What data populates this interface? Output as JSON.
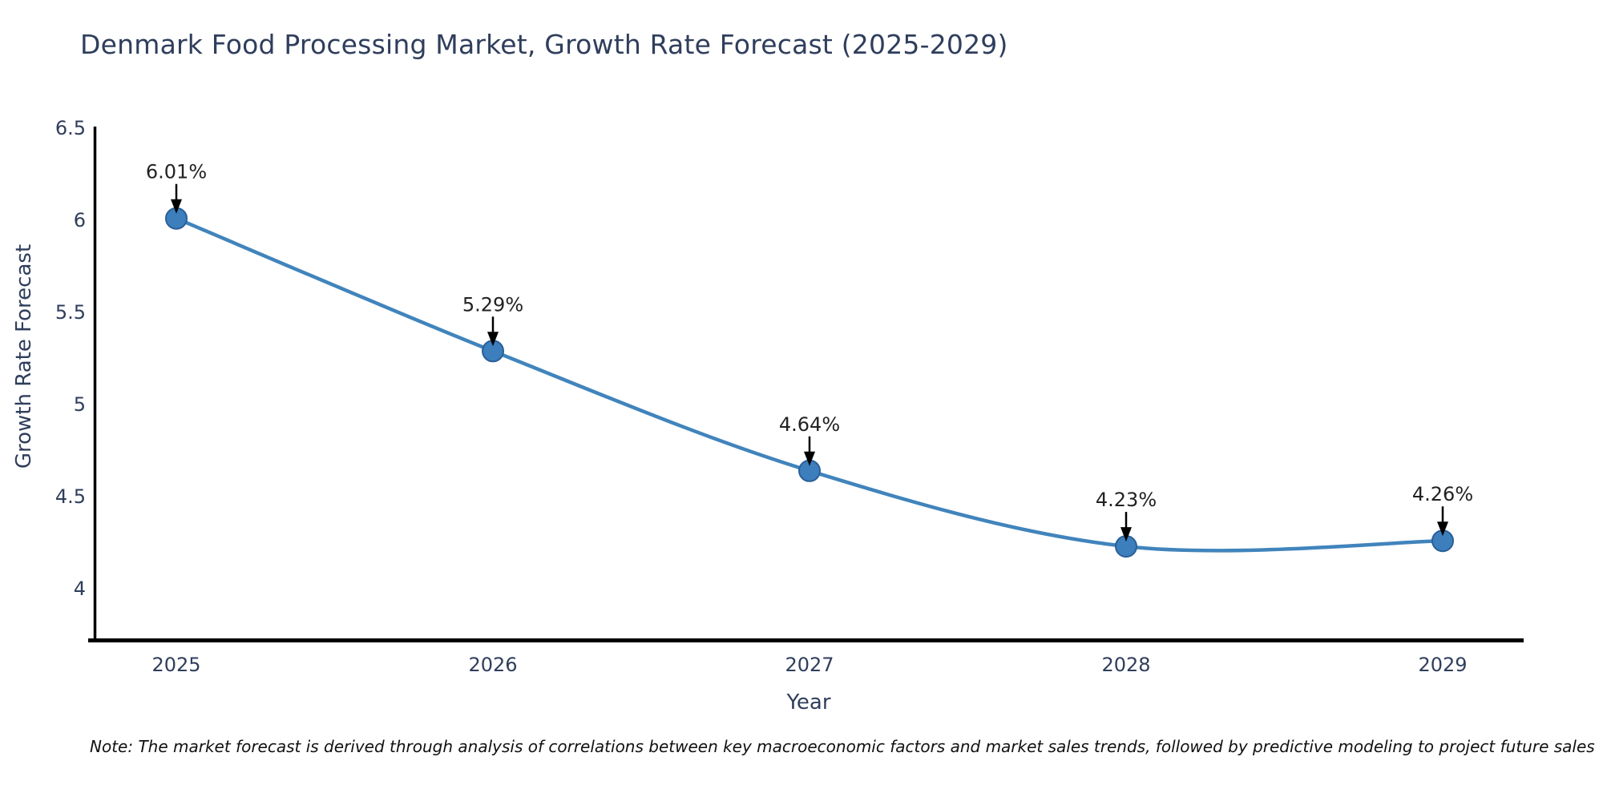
{
  "chart_data": {
    "type": "line",
    "title": "Denmark Food Processing Market, Growth Rate Forecast (2025-2029)",
    "xlabel": "Year",
    "ylabel": "Growth Rate Forecast",
    "categories": [
      "2025",
      "2026",
      "2027",
      "2028",
      "2029"
    ],
    "values": [
      6.01,
      5.29,
      4.64,
      4.23,
      4.26
    ],
    "point_labels": [
      "6.01%",
      "5.29%",
      "4.64%",
      "4.23%",
      "4.26%"
    ],
    "yticks": [
      "6.5",
      "6",
      "5.5",
      "5",
      "4.5",
      "4"
    ],
    "ytick_values": [
      6.5,
      6.0,
      5.5,
      5.0,
      4.5,
      4.0
    ],
    "ylim": [
      3.72,
      6.51
    ],
    "grid": false,
    "legend": "none",
    "line_smoothing": true,
    "note": "Note: The market forecast is derived through analysis of correlations between key macroeconomic factors and market sales trends, followed by predictive modeling to project future sales",
    "colors": {
      "line": "#4184bc",
      "marker_fill": "#3d7ebd",
      "marker_edge": "#2a6099",
      "axis": "#000000",
      "text": "#2f3e5c",
      "annotation_text": "#222222",
      "note_text": "#111111",
      "background": "#ffffff"
    }
  }
}
